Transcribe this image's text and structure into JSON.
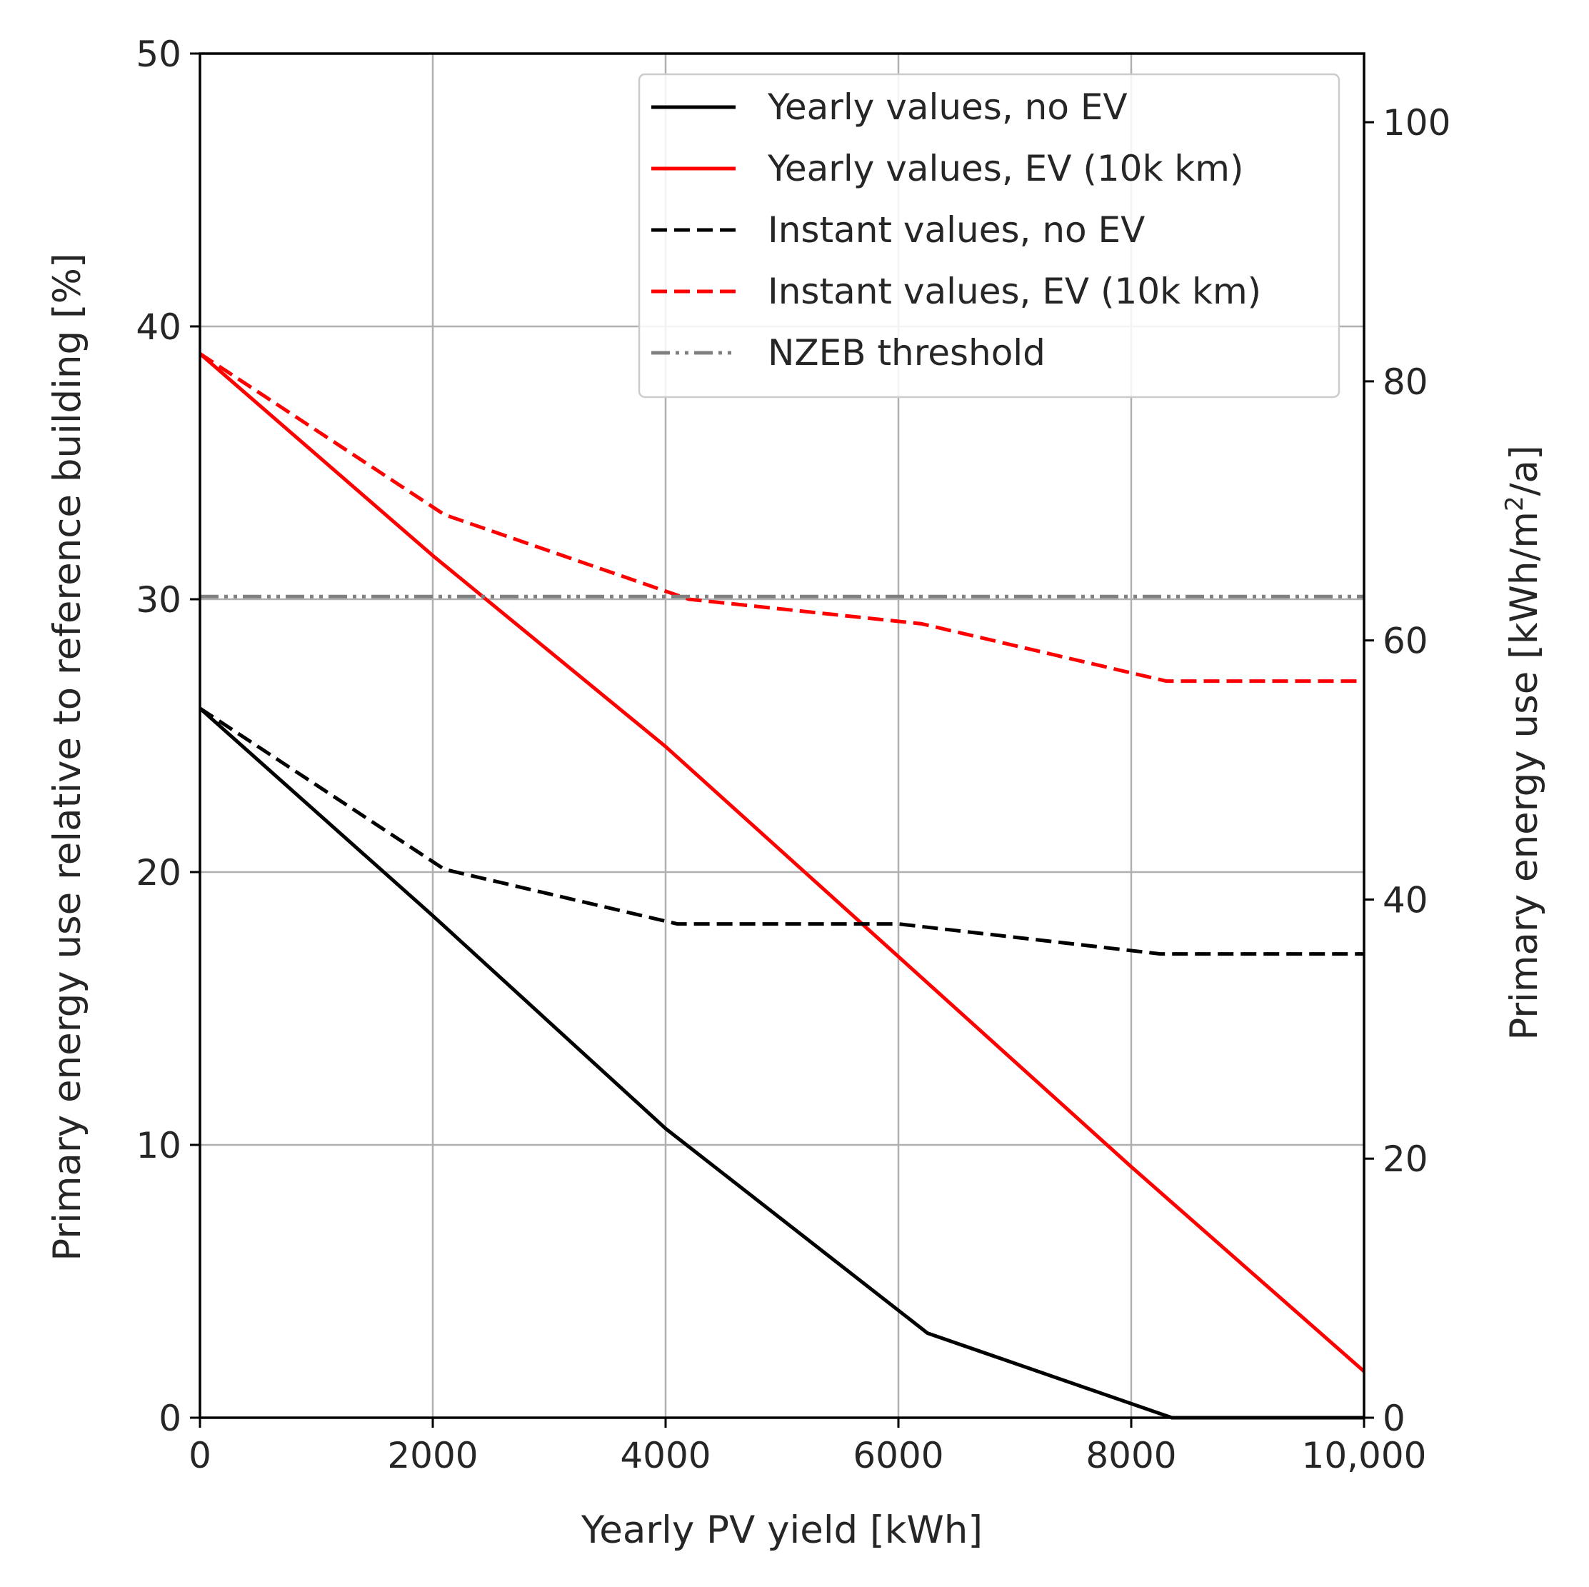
{
  "chart_data": {
    "type": "line",
    "title": "",
    "xlabel": "Yearly PV yield [kWh]",
    "ylabel": "Primary energy use relative to reference building [%]",
    "ylabel_right": "Primary energy use [kWh/m",
    "ylabel_right_sup": "2",
    "ylabel_right_end": "/a]",
    "xlim": [
      0,
      10000
    ],
    "ylim": [
      0,
      50
    ],
    "ylim_right": [
      0,
      105.3
    ],
    "grid": true,
    "legend_position": "top-right",
    "x_ticks": [
      0,
      2000,
      4000,
      6000,
      8000,
      10000
    ],
    "x_tick_labels": [
      "0",
      "2000",
      "4000",
      "6000",
      "8000",
      "10,000"
    ],
    "y_ticks": [
      0,
      10,
      20,
      30,
      40,
      50
    ],
    "y_tick_labels": [
      "0",
      "10",
      "20",
      "30",
      "40",
      "50"
    ],
    "y_right_ticks": [
      0,
      20,
      40,
      60,
      80,
      100
    ],
    "y_right_tick_labels": [
      "0",
      "20",
      "40",
      "60",
      "80",
      "100"
    ],
    "series": [
      {
        "name": "Yearly values, no EV",
        "color": "#000000",
        "style": "solid",
        "x": [
          0,
          2000,
          4000,
          6250,
          8350,
          10000
        ],
        "y": [
          26.0,
          18.4,
          10.6,
          3.1,
          0.0,
          0.0
        ]
      },
      {
        "name": "Yearly values, EV (10k km)",
        "color": "#ff0000",
        "style": "solid",
        "x": [
          0,
          2000,
          4000,
          6000,
          8000,
          10000
        ],
        "y": [
          39.0,
          31.6,
          24.6,
          16.9,
          9.2,
          1.7
        ]
      },
      {
        "name": "Instant values, no EV",
        "color": "#000000",
        "style": "dashed",
        "x": [
          0,
          2100,
          4100,
          6000,
          8250,
          10000
        ],
        "y": [
          26.0,
          20.1,
          18.1,
          18.1,
          17.0,
          17.0
        ]
      },
      {
        "name": "Instant values, EV (10k km)",
        "color": "#ff0000",
        "style": "dashed",
        "x": [
          0,
          2100,
          4200,
          6200,
          8300,
          10000
        ],
        "y": [
          39.0,
          33.1,
          30.0,
          29.1,
          27.0,
          27.0
        ]
      },
      {
        "name": "NZEB threshold",
        "color": "#808080",
        "style": "dashdotdot",
        "x": [
          0,
          10000
        ],
        "y": [
          30.1,
          30.1
        ]
      }
    ]
  }
}
